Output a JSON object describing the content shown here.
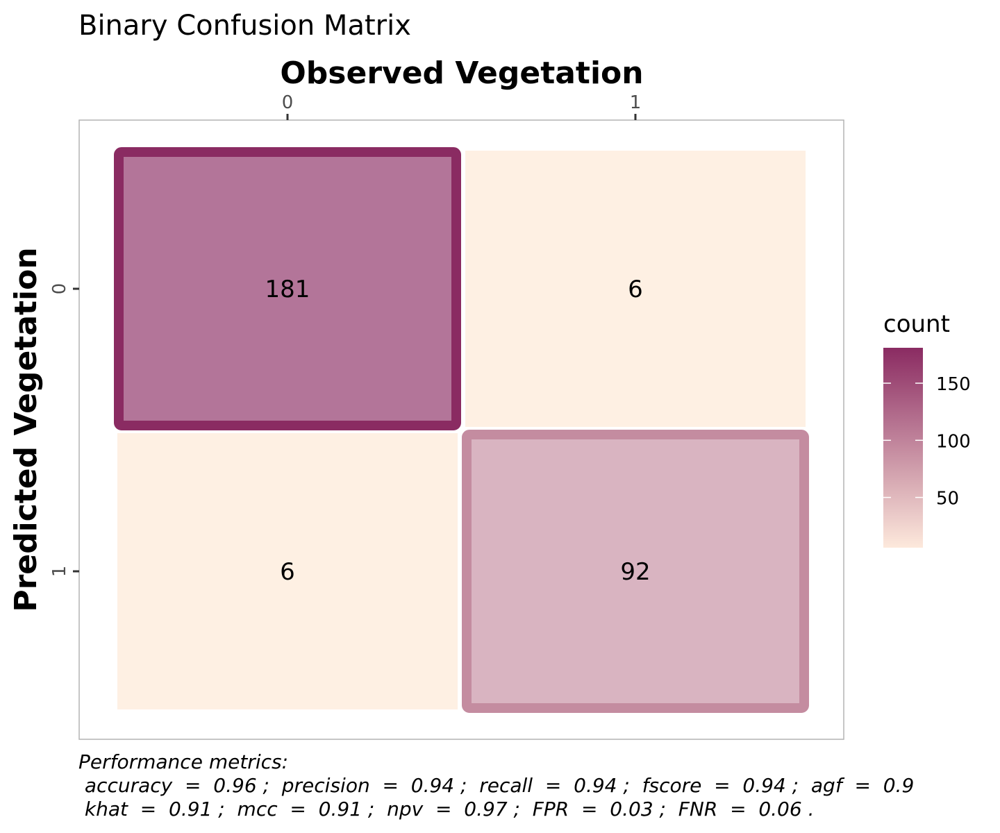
{
  "chart_data": {
    "type": "heatmap",
    "title": "Binary Confusion Matrix",
    "xlabel": "Observed Vegetation",
    "ylabel": "Predicted Vegetation",
    "x_categories": [
      "0",
      "1"
    ],
    "y_categories": [
      "0",
      "1"
    ],
    "cells": [
      {
        "observed": "0",
        "predicted": "0",
        "count": 181,
        "diagonal": true
      },
      {
        "observed": "1",
        "predicted": "0",
        "count": 6,
        "diagonal": false
      },
      {
        "observed": "0",
        "predicted": "1",
        "count": 6,
        "diagonal": false
      },
      {
        "observed": "1",
        "predicted": "1",
        "count": 92,
        "diagonal": true
      }
    ],
    "legend": {
      "title": "count",
      "placement": "right",
      "ticks": [
        150,
        100,
        50
      ],
      "range": [
        6,
        181
      ],
      "low_color": "#FDE9DC",
      "high_color": "#8A2B62"
    },
    "offdiag_color": "#FEF0E3",
    "grid": false
  },
  "caption": {
    "heading": "Performance metrics:",
    "line1": " accuracy  =  0.96 ;  precision  =  0.94 ;  recall  =  0.94 ;  fscore  =  0.94 ;  agf  =  0.9",
    "line2": " khat  =  0.91 ;  mcc  =  0.91 ;  npv  =  0.97 ;  FPR  =  0.03 ;  FNR  =  0.06 ."
  }
}
